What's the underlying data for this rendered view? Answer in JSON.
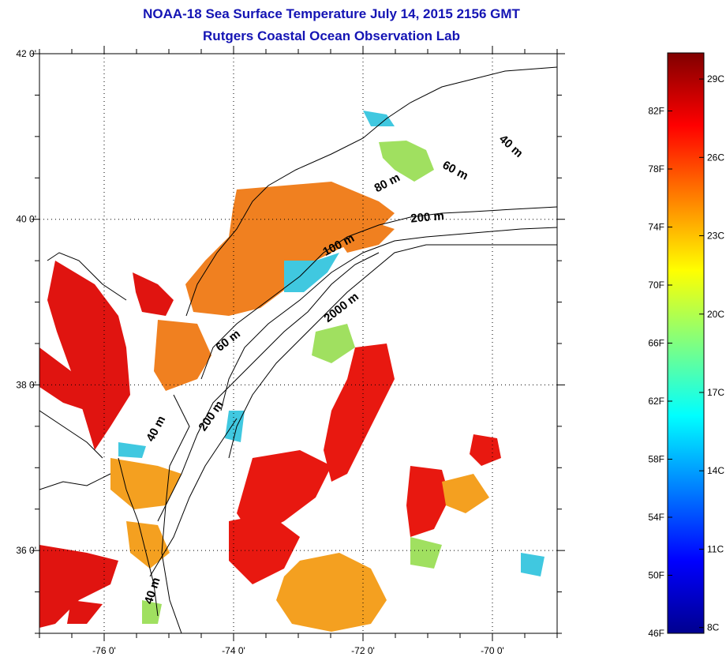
{
  "header": {
    "title_line1": "NOAA-18 Sea Surface Temperature July 14, 2015 2156 GMT",
    "title_line2": "Rutgers Coastal Ocean Observation Lab"
  },
  "map": {
    "lon_range": [
      -77.0,
      -69.0
    ],
    "lat_range": [
      35.0,
      42.0
    ],
    "lon_ticks": [
      {
        "value": -76,
        "label": "-76 0'"
      },
      {
        "value": -74,
        "label": "-74 0'"
      },
      {
        "value": -72,
        "label": "-72 0'"
      },
      {
        "value": -70,
        "label": "-70 0'"
      }
    ],
    "lat_ticks": [
      {
        "value": 42,
        "label": "42 0'"
      },
      {
        "value": 40,
        "label": "40 0'"
      },
      {
        "value": 38,
        "label": "38 0'"
      },
      {
        "value": 36,
        "label": "36 0'"
      }
    ],
    "grid": "dotted",
    "isobath_labels": [
      {
        "text": "40 m",
        "lon": -69.75,
        "lat": 40.85,
        "rot": 42
      },
      {
        "text": "60 m",
        "lon": -70.6,
        "lat": 40.55,
        "rot": 28
      },
      {
        "text": "80 m",
        "lon": -71.6,
        "lat": 40.4,
        "rot": -28
      },
      {
        "text": "200 m",
        "lon": -71.0,
        "lat": 39.98,
        "rot": -5
      },
      {
        "text": "100 m",
        "lon": -72.35,
        "lat": 39.65,
        "rot": -28
      },
      {
        "text": "2000 m",
        "lon": -72.3,
        "lat": 38.9,
        "rot": -38
      },
      {
        "text": "60 m",
        "lon": -74.05,
        "lat": 38.5,
        "rot": -38
      },
      {
        "text": "200 m",
        "lon": -74.3,
        "lat": 37.6,
        "rot": -55
      },
      {
        "text": "40 m",
        "lon": -75.15,
        "lat": 37.45,
        "rot": -62
      },
      {
        "text": "40 m",
        "lon": -75.2,
        "lat": 35.5,
        "rot": -72
      }
    ]
  },
  "colorbar": {
    "range_f": [
      46,
      86
    ],
    "fahrenheit_ticks": [
      {
        "value": 46,
        "label": "46F"
      },
      {
        "value": 50,
        "label": "50F"
      },
      {
        "value": 54,
        "label": "54F"
      },
      {
        "value": 58,
        "label": "58F"
      },
      {
        "value": 62,
        "label": "62F"
      },
      {
        "value": 66,
        "label": "66F"
      },
      {
        "value": 70,
        "label": "70F"
      },
      {
        "value": 74,
        "label": "74F"
      },
      {
        "value": 78,
        "label": "78F"
      },
      {
        "value": 82,
        "label": "82F"
      }
    ],
    "celsius_ticks": [
      {
        "value": 8,
        "label": "8C"
      },
      {
        "value": 11,
        "label": "11C"
      },
      {
        "value": 14,
        "label": "14C"
      },
      {
        "value": 17,
        "label": "17C"
      },
      {
        "value": 20,
        "label": "20C"
      },
      {
        "value": 23,
        "label": "23C"
      },
      {
        "value": 26,
        "label": "26C"
      },
      {
        "value": 29,
        "label": "29C"
      }
    ],
    "colormap": [
      "#00008f",
      "#0000ff",
      "#0080ff",
      "#00ffff",
      "#80ff80",
      "#ffff00",
      "#ff8000",
      "#ff0000",
      "#800000"
    ]
  },
  "sst_colors": {
    "bay_red": "#e01410",
    "shelf_orange": "#f08020",
    "offshore_red": "#e81810",
    "warm_mix": "#f4a020",
    "cool_cyan": "#40c8e0",
    "cool_green": "#a0e060",
    "land": "#ffffff",
    "coast_line": "#000000"
  }
}
